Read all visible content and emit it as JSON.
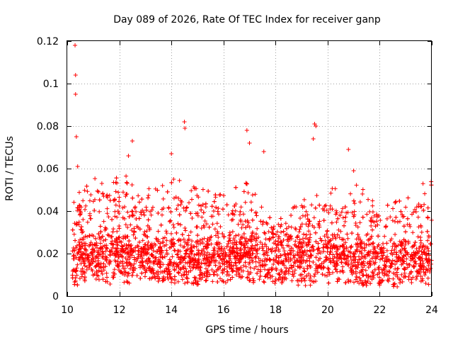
{
  "chart_data": {
    "type": "scatter",
    "title": "Day 089 of 2026, Rate Of TEC Index for receiver ganp",
    "xlabel": "GPS time / hours",
    "ylabel": "ROTI / TECUs",
    "xlim": [
      10,
      24
    ],
    "ylim": [
      0,
      0.12
    ],
    "x_ticks": [
      "10",
      "12",
      "14",
      "16",
      "18",
      "20",
      "22",
      "24"
    ],
    "y_ticks": [
      "0",
      "0.02",
      "0.04",
      "0.06",
      "0.08",
      "0.1",
      "0.12"
    ],
    "grid": true,
    "marker": "+",
    "series_color": "#ff0000",
    "notable_points": [
      {
        "x": 10.3,
        "y": 0.118
      },
      {
        "x": 10.32,
        "y": 0.104
      },
      {
        "x": 10.32,
        "y": 0.095
      },
      {
        "x": 10.35,
        "y": 0.075
      },
      {
        "x": 10.4,
        "y": 0.061
      },
      {
        "x": 12.5,
        "y": 0.073
      },
      {
        "x": 12.35,
        "y": 0.066
      },
      {
        "x": 14.0,
        "y": 0.067
      },
      {
        "x": 14.5,
        "y": 0.082
      },
      {
        "x": 14.52,
        "y": 0.079
      },
      {
        "x": 16.9,
        "y": 0.078
      },
      {
        "x": 17.0,
        "y": 0.072
      },
      {
        "x": 17.55,
        "y": 0.068
      },
      {
        "x": 19.5,
        "y": 0.081
      },
      {
        "x": 19.55,
        "y": 0.08
      },
      {
        "x": 19.45,
        "y": 0.074
      },
      {
        "x": 20.8,
        "y": 0.069
      },
      {
        "x": 21.0,
        "y": 0.059
      }
    ],
    "density_profile": {
      "description": "Dense band of measurements; typical value per hour with spread",
      "hours": [
        10.2,
        11,
        12,
        13,
        14,
        15,
        16,
        17,
        18,
        19,
        20,
        21,
        22,
        23,
        24
      ],
      "typical": [
        0.016,
        0.018,
        0.019,
        0.018,
        0.017,
        0.016,
        0.018,
        0.019,
        0.016,
        0.017,
        0.018,
        0.016,
        0.015,
        0.016,
        0.016
      ],
      "upper": [
        0.05,
        0.055,
        0.06,
        0.05,
        0.058,
        0.052,
        0.05,
        0.055,
        0.035,
        0.045,
        0.05,
        0.055,
        0.042,
        0.05,
        0.055
      ],
      "lower": [
        0.005,
        0.006,
        0.005,
        0.006,
        0.006,
        0.005,
        0.006,
        0.006,
        0.006,
        0.005,
        0.004,
        0.005,
        0.005,
        0.004,
        0.005
      ]
    }
  }
}
